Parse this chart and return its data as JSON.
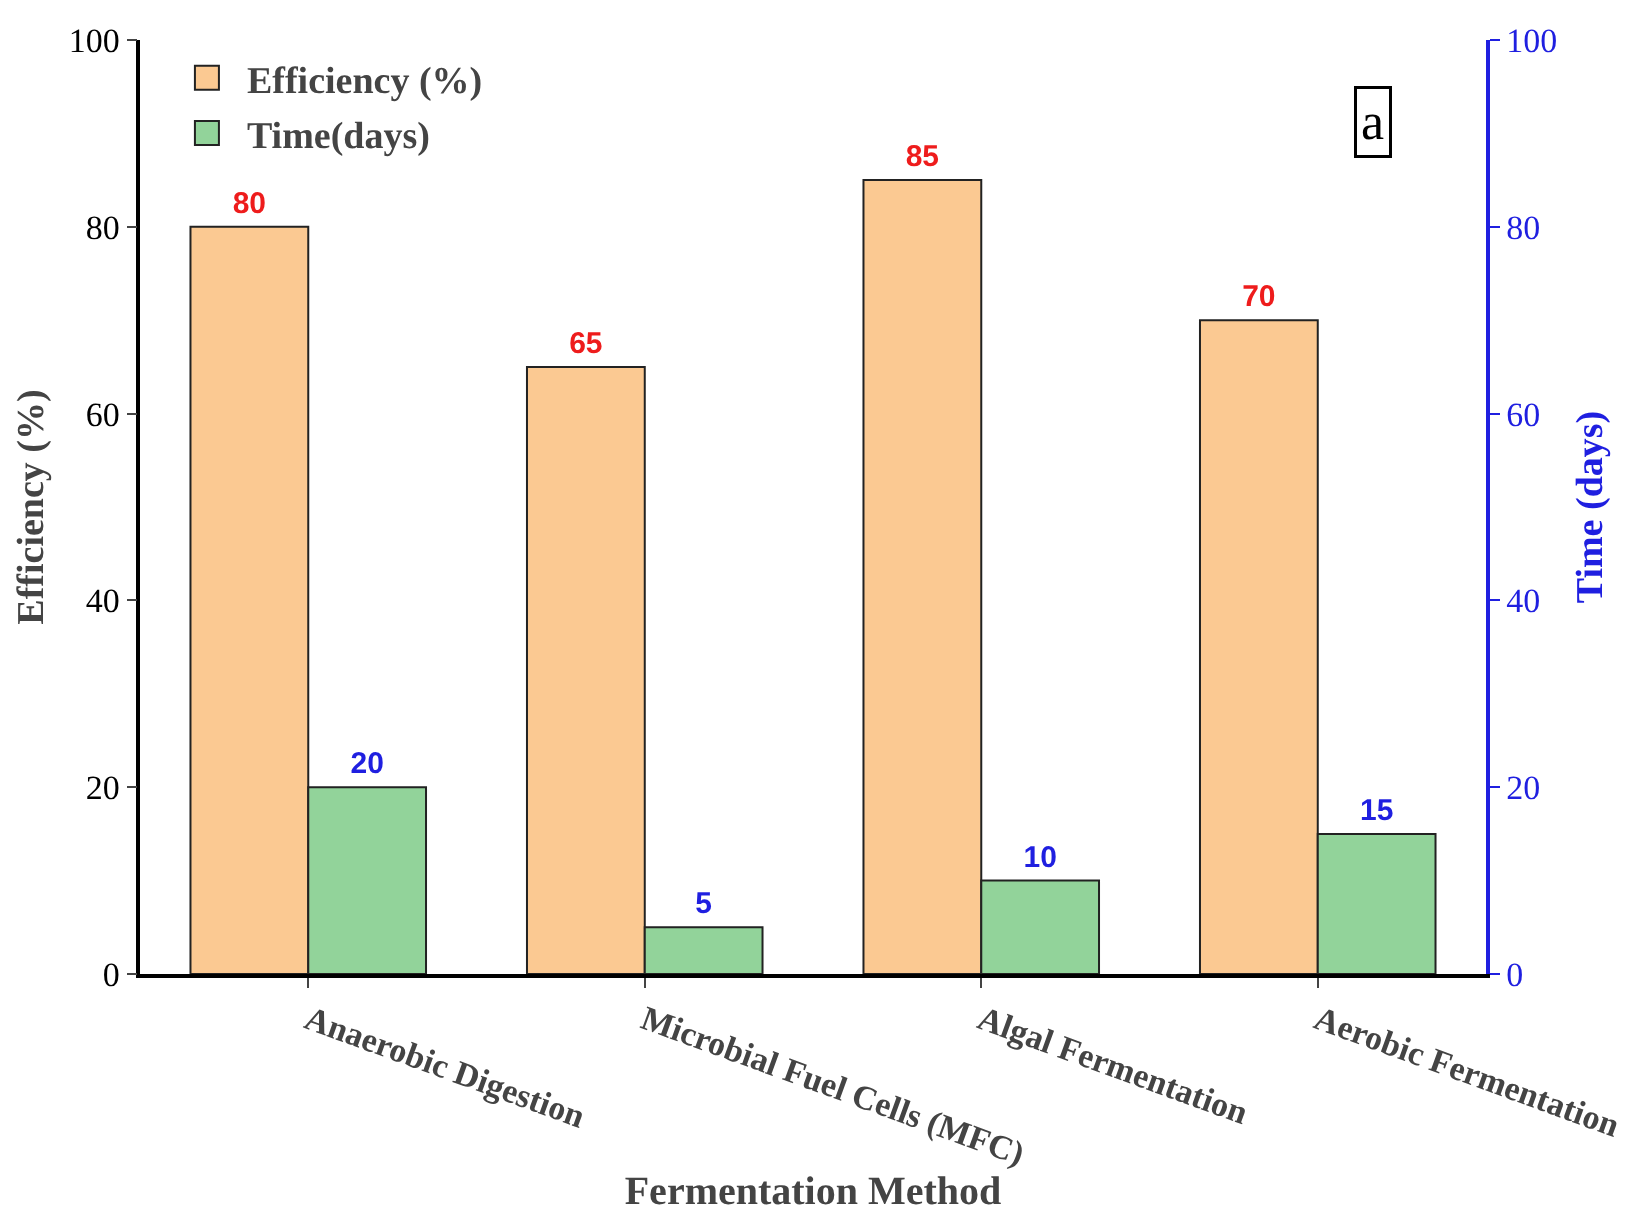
{
  "chart_data": {
    "type": "bar",
    "xlabel": "Fermentation Method",
    "ylabel": "Efficiency (%)",
    "y2label": "Time (days)",
    "categories": [
      "Anaerobic Digestion",
      "Microbial Fuel Cells (MFC)",
      "Algal Fermentation",
      "Aerobic Fermentation"
    ],
    "series": [
      {
        "name": "Efficiency (%)",
        "color": "#fbc992",
        "values": [
          80,
          65,
          85,
          70
        ]
      },
      {
        "name": "Time(days)",
        "color": "#92d39a",
        "values": [
          20,
          5,
          10,
          15
        ],
        "axis": "y2"
      }
    ],
    "ylim": [
      0,
      100
    ],
    "yticks": [
      0,
      20,
      40,
      60,
      80,
      100
    ],
    "y2lim": [
      0,
      100
    ],
    "y2ticks": [
      0,
      20,
      40,
      60,
      80,
      100
    ],
    "annotations": [
      "a"
    ],
    "data_labels": true,
    "grid": false,
    "legend": "top left"
  }
}
